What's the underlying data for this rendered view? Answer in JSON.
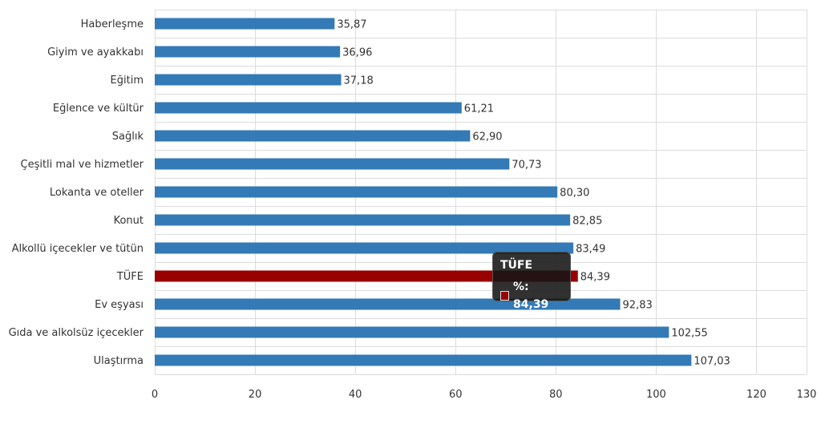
{
  "chart_data": {
    "type": "bar",
    "orientation": "horizontal",
    "categories": [
      "Haberleşme",
      "Giyim ve ayakkabı",
      "Eğitim",
      "Eğlence ve kültür",
      "Sağlık",
      "Çeşitli mal ve hizmetler",
      "Lokanta ve oteller",
      "Konut",
      "Alkollü içecekler ve tütün",
      "TÜFE",
      "Ev eşyası",
      "Gıda ve alkolsüz içecekler",
      "Ulaştırma"
    ],
    "values": [
      35.87,
      36.96,
      37.18,
      61.21,
      62.9,
      70.73,
      80.3,
      82.85,
      83.49,
      84.39,
      92.83,
      102.55,
      107.03
    ],
    "value_labels": [
      "35,87",
      "36,96",
      "37,18",
      "61,21",
      "62,90",
      "70,73",
      "80,30",
      "82,85",
      "83,49",
      "84,39",
      "92,83",
      "102,55",
      "107,03"
    ],
    "xlim": [
      0,
      130
    ],
    "xticks": [
      0,
      20,
      40,
      60,
      80,
      100,
      120,
      130
    ],
    "grid": true,
    "colors": {
      "default": "#337ab7",
      "highlight": "#990000"
    },
    "highlight_category": "TÜFE"
  },
  "tooltip": {
    "title": "TÜFE",
    "label": "%: 84,39",
    "swatch_color": "#990000"
  }
}
